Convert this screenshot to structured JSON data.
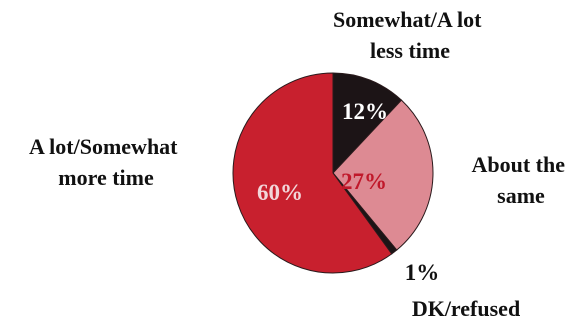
{
  "chart_data": {
    "type": "pie",
    "title": "",
    "slices": [
      {
        "label_lines": [
          "Somewhat/A lot",
          "less time"
        ],
        "value": 12,
        "value_label": "12%",
        "color": "#1c1416",
        "value_label_color": "#ffffff"
      },
      {
        "label_lines": [
          "About the",
          "same"
        ],
        "value": 27,
        "value_label": "27%",
        "color": "#dd8a93",
        "value_label_color": "#c0182a"
      },
      {
        "label_lines": [
          "DK/refused"
        ],
        "value": 1,
        "value_label": "1%",
        "color": "#1c1416",
        "value_label_color": "#111111"
      },
      {
        "label_lines": [
          "A lot/Somewhat",
          "more time"
        ],
        "value": 60,
        "value_label": "60%",
        "color": "#c8202e",
        "value_label_color": "#f2d6d9"
      }
    ],
    "start_angle_deg": 0,
    "direction": "clockwise",
    "legend": "none"
  }
}
